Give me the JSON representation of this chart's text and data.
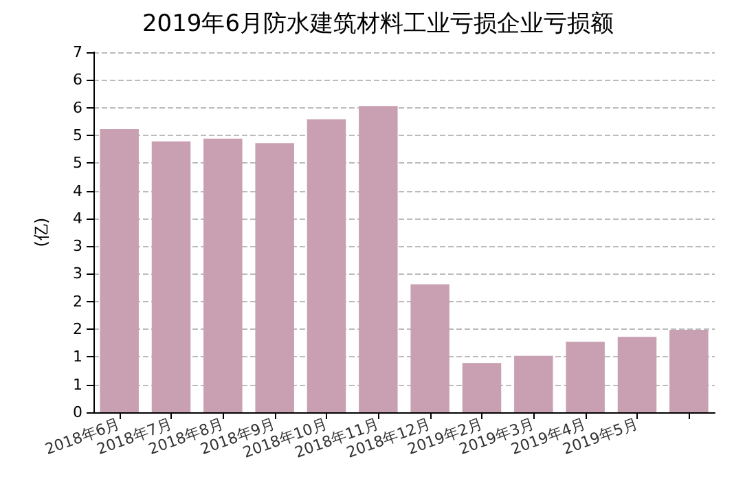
{
  "chart_data": {
    "type": "bar",
    "title": "2019年6月防水建筑材料工业亏损企业亏损额",
    "ylabel": "(亿)",
    "categories": [
      "2018年6月",
      "2018年7月",
      "2018年8月",
      "2018年9月",
      "2018年10月",
      "2018年11月",
      "2018年12月",
      "2019年2月",
      "2019年3月",
      "2019年4月",
      "2019年5月",
      null
    ],
    "values": [
      5.11,
      4.89,
      4.94,
      4.86,
      5.29,
      5.53,
      2.31,
      0.89,
      1.02,
      1.27,
      1.36,
      1.49
    ],
    "color": "#c8a0b2",
    "ylim": [
      0,
      6.5
    ],
    "yticks": [
      0,
      {
        "value": 0.5,
        "label": "1"
      },
      {
        "value": 1,
        "label": "1"
      },
      {
        "value": 1.5,
        "label": "2"
      },
      {
        "value": 2,
        "label": "2"
      },
      {
        "value": 2.5,
        "label": "3"
      },
      {
        "value": 3,
        "label": "3"
      },
      {
        "value": 3.5,
        "label": "4"
      },
      {
        "value": 4,
        "label": "4"
      },
      {
        "value": 4.5,
        "label": "5"
      },
      {
        "value": 5,
        "label": "5"
      },
      {
        "value": 5.5,
        "label": "6"
      },
      {
        "value": 6,
        "label": "6"
      },
      {
        "value": 6.5,
        "label": "7"
      }
    ],
    "grid": "y"
  }
}
